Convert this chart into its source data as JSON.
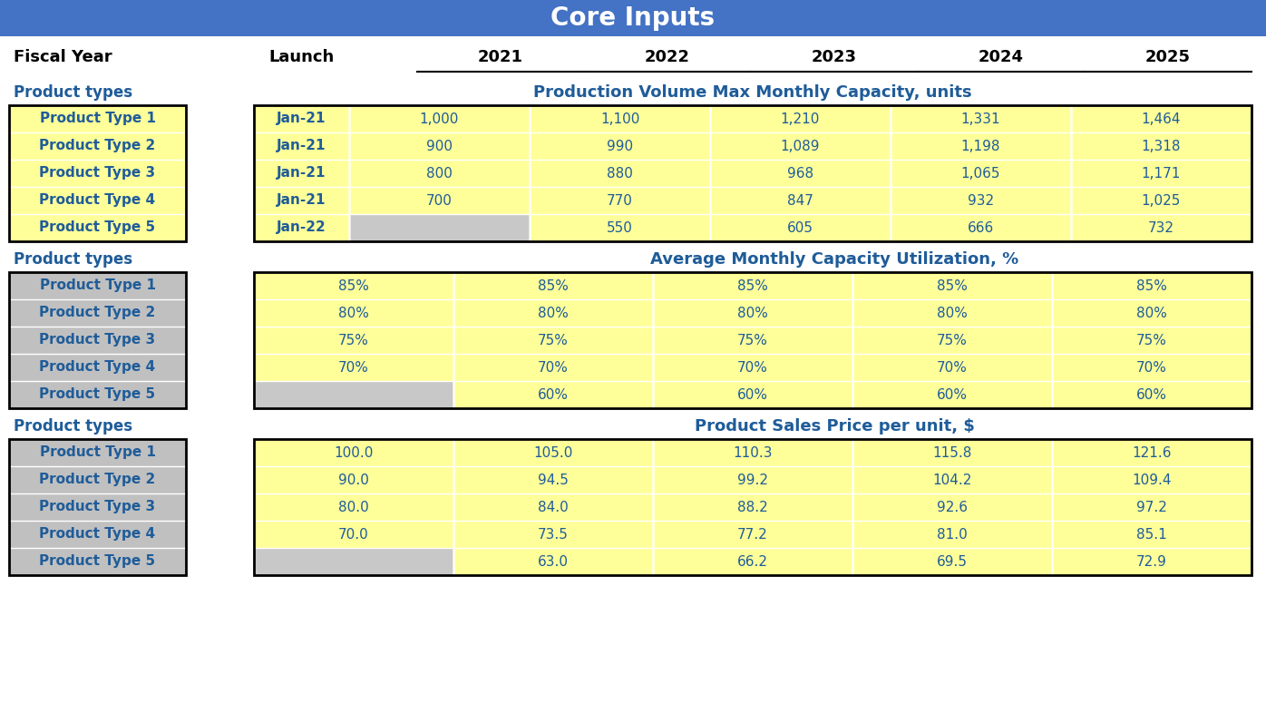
{
  "title": "Core Inputs",
  "title_bg": "#4472C4",
  "title_fg": "#FFFFFF",
  "product_types": [
    "Product Type 1",
    "Product Type 2",
    "Product Type 3",
    "Product Type 4",
    "Product Type 5"
  ],
  "launch_dates": [
    "Jan-21",
    "Jan-21",
    "Jan-21",
    "Jan-21",
    "Jan-22"
  ],
  "production_volume": [
    [
      1000,
      1100,
      1210,
      1331,
      1464
    ],
    [
      900,
      990,
      1089,
      1198,
      1318
    ],
    [
      800,
      880,
      968,
      1065,
      1171
    ],
    [
      700,
      770,
      847,
      932,
      1025
    ],
    [
      null,
      550,
      605,
      666,
      732
    ]
  ],
  "capacity_utilization": [
    [
      "85%",
      "85%",
      "85%",
      "85%",
      "85%"
    ],
    [
      "80%",
      "80%",
      "80%",
      "80%",
      "80%"
    ],
    [
      "75%",
      "75%",
      "75%",
      "75%",
      "75%"
    ],
    [
      "70%",
      "70%",
      "70%",
      "70%",
      "70%"
    ],
    [
      null,
      "60%",
      "60%",
      "60%",
      "60%"
    ]
  ],
  "sales_price": [
    [
      100.0,
      105.0,
      110.3,
      115.8,
      121.6
    ],
    [
      90.0,
      94.5,
      99.2,
      104.2,
      109.4
    ],
    [
      80.0,
      84.0,
      88.2,
      92.6,
      97.2
    ],
    [
      70.0,
      73.5,
      77.2,
      81.0,
      85.1
    ],
    [
      null,
      63.0,
      66.2,
      69.5,
      72.9
    ]
  ],
  "section1_title": "Production Volume Max Monthly Capacity, units",
  "section2_title": "Average Monthly Capacity Utilization, %",
  "section3_title": "Product Sales Price per unit, $",
  "years": [
    "2021",
    "2022",
    "2023",
    "2024",
    "2025"
  ],
  "yellow_fill": "#FFFF99",
  "gray_fill": "#C8C8C8",
  "blue_text": "#1F5C99",
  "black_text": "#000000",
  "white_text": "#FFFFFF",
  "section_label_color": "#1F5C99",
  "pt_yellow_bg": "#FFFF99",
  "pt_gray_bg": "#C0C0C0",
  "title_fontsize": 20,
  "header_fontsize": 13,
  "label_fontsize": 12,
  "data_fontsize": 11,
  "section_title_fontsize": 13
}
